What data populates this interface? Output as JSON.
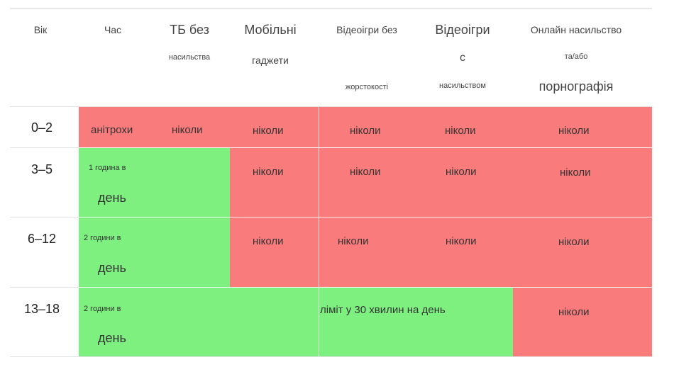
{
  "headers": {
    "age": "Вік",
    "time": "Час",
    "tv_line1": "ТБ без",
    "tv_line2": "насильства",
    "mobile_line1": "Мобільні",
    "mobile_line2": "гаджети",
    "games_nv_line1": "Відеоігри без",
    "games_nv_line2": "жорстокості",
    "games_v_line1": "Відеоігри",
    "games_v_line2": "с",
    "games_v_line3": "насильством",
    "online_line1": "Онлайн насильство",
    "online_line2": "та/або",
    "online_line3": "порнографія"
  },
  "rows": [
    {
      "age": "0–2",
      "time": "анітрохи",
      "tv": "ніколи",
      "mobile": "ніколи",
      "games_nv": "ніколи",
      "games_v": "ніколи",
      "online": "ніколи"
    },
    {
      "age": "3–5",
      "time_line1": "1 година в",
      "time_line2": "день",
      "mobile": "ніколи",
      "games_nv": "ніколи",
      "games_v": "ніколи",
      "online": "ніколи"
    },
    {
      "age": "6–12",
      "time_line1": "2 години в",
      "time_line2": "день",
      "mobile": "ніколи",
      "games_nv": "ніколи",
      "games_v": "ніколи",
      "online": "ніколи"
    },
    {
      "age": "13–18",
      "time_line1": "2 години в",
      "time_line2": "день",
      "games_limit": "ліміт у 30 хвилин на день",
      "online": "ніколи"
    }
  ],
  "colors": {
    "allowed": "#7df07f",
    "forbidden": "#f97b7b"
  }
}
